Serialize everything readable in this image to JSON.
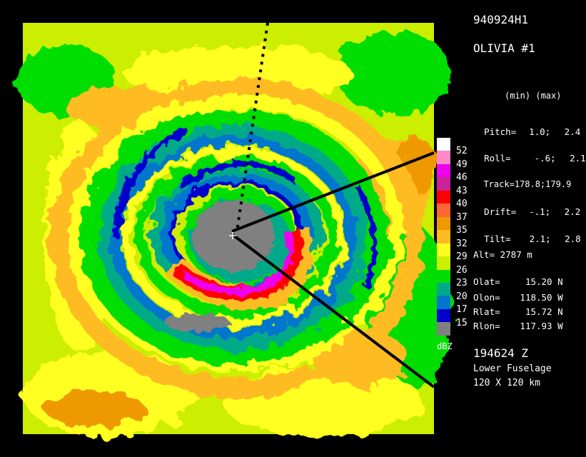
{
  "header": {
    "flight_id": "940924H1",
    "storm": "OLIVIA #1"
  },
  "minmax_header": "(min) (max)",
  "parameters": [
    {
      "label": "Pitch=",
      "min": "1.0;",
      "max": "2.4"
    },
    {
      "label": "Roll=",
      "min": "-.6;",
      "max": "2.1"
    },
    {
      "label": "Track=",
      "min": "178.8;",
      "max": "179.9"
    },
    {
      "label": "Drift=",
      "min": "-.1;",
      "max": "2.2"
    },
    {
      "label": "Tilt=",
      "min": "2.1;",
      "max": "2.8"
    }
  ],
  "altitude": "Alt= 2787 m",
  "positions": [
    {
      "label": "Olat=",
      "value": "15.20 N"
    },
    {
      "label": "Olon=",
      "value": "118.50 W"
    },
    {
      "label": "Rlat=",
      "value": "15.72 N"
    },
    {
      "label": "Rlon=",
      "value": "117.93 W"
    }
  ],
  "time": "194624 Z",
  "radar": "Lower Fuselage",
  "domain_size": "120 X 120 km",
  "legend": {
    "unit": "dBZ",
    "levels": [
      "52",
      "49",
      "46",
      "43",
      "40",
      "37",
      "35",
      "32",
      "29",
      "26",
      "23",
      "20",
      "17",
      "15"
    ],
    "colors": [
      "#ffffff",
      "#ff88c8",
      "#ee00ee",
      "#cc2299",
      "#ff0000",
      "#ff6633",
      "#ee9900",
      "#ffbb22",
      "#ffff22",
      "#ccee00",
      "#00dd00",
      "#00aa88",
      "#0077cc",
      "#0000cc",
      "#808080"
    ]
  }
}
